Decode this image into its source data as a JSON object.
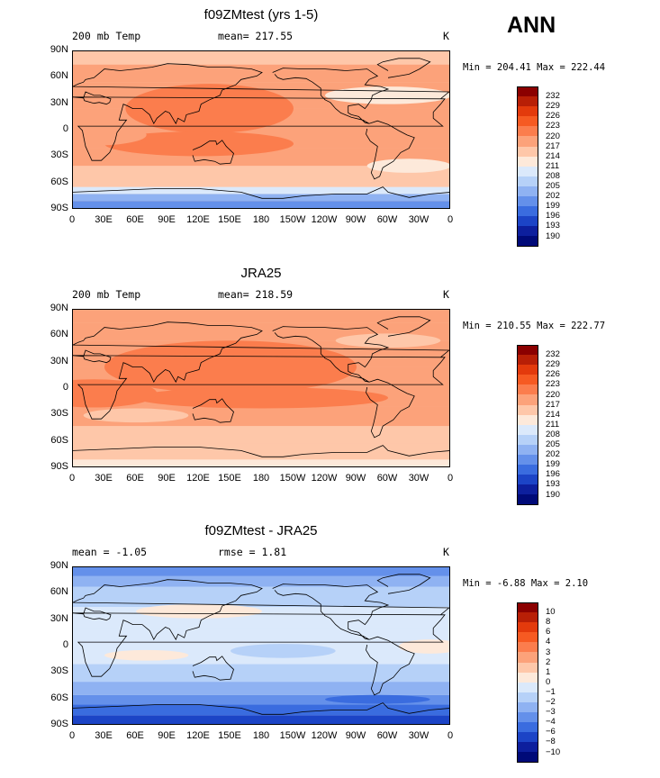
{
  "season": "ANN",
  "x_ticks": [
    "0",
    "30E",
    "60E",
    "90E",
    "120E",
    "150E",
    "180",
    "150W",
    "120W",
    "90W",
    "60W",
    "30W",
    "0"
  ],
  "y_ticks": [
    "90N",
    "60N",
    "30N",
    "0",
    "30S",
    "60S",
    "90S"
  ],
  "levels_abs": [
    "232",
    "229",
    "226",
    "223",
    "220",
    "217",
    "214",
    "211",
    "208",
    "205",
    "202",
    "199",
    "196",
    "193",
    "190"
  ],
  "colors_abs": [
    "#8b0000",
    "#b81f06",
    "#e33a0c",
    "#f65a22",
    "#fb7d4d",
    "#fca27a",
    "#fec7a9",
    "#fde9da",
    "#dbe9fb",
    "#b6d1f8",
    "#8fb2f2",
    "#6490ea",
    "#3a6cdf",
    "#1c44c6",
    "#0d1f9d",
    "#000a78"
  ],
  "levels_diff": [
    "10",
    "8",
    "6",
    "4",
    "3",
    "2",
    "1",
    "0",
    "−1",
    "−2",
    "−3",
    "−4",
    "−6",
    "−8",
    "−10"
  ],
  "panels": [
    {
      "title": "f09ZMtest (yrs 1-5)",
      "left_label": "200 mb Temp",
      "center_label": "mean= 217.55",
      "right_label": "K",
      "stats": "Min = 204.41 Max = 222.44",
      "colorbar": "abs"
    },
    {
      "title": "JRA25",
      "left_label": "200 mb Temp",
      "center_label": "mean= 218.59",
      "right_label": "K",
      "stats": "Min = 210.55 Max = 222.77",
      "colorbar": "abs"
    },
    {
      "title": "f09ZMtest - JRA25",
      "left_label": "mean =   -1.05",
      "center_label": "rmse =    1.81",
      "right_label": "K",
      "stats": "Min =   -6.88 Max =    2.10",
      "colorbar": "diff"
    }
  ]
}
